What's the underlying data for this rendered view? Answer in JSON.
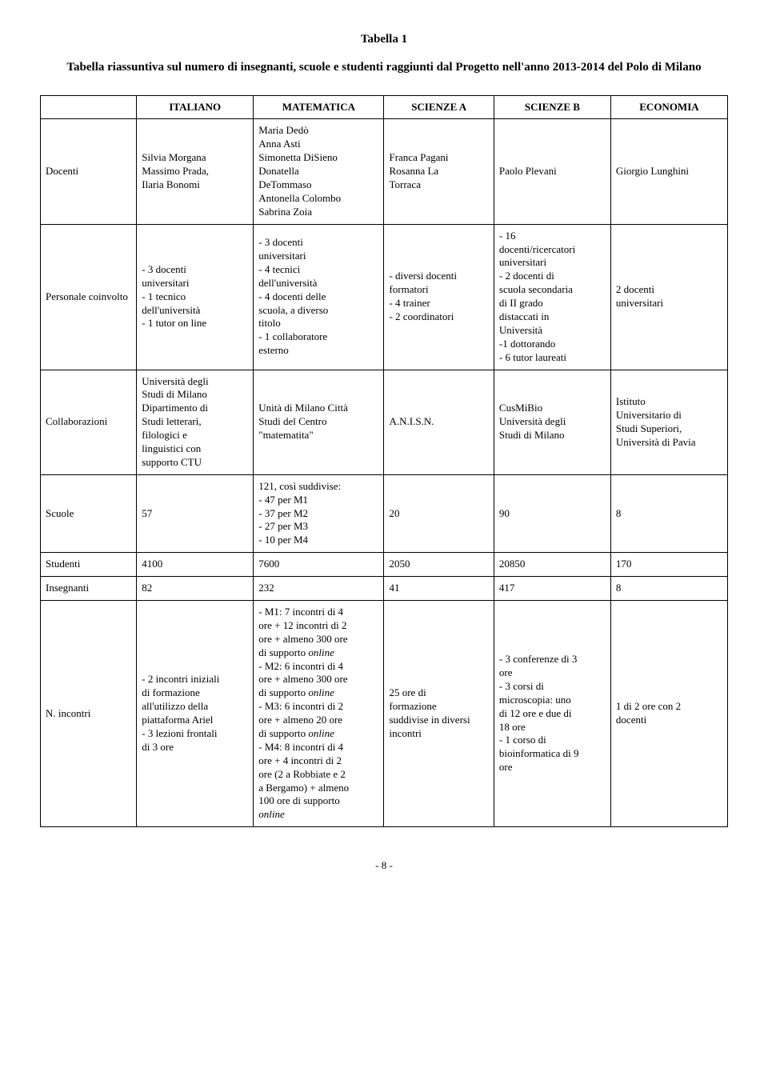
{
  "title1": "Tabella 1",
  "title2": "Tabella riassuntiva sul numero di insegnanti, scuole e studenti raggiunti dal Progetto nell'anno 2013-2014 del Polo di Milano",
  "columns": [
    "ITALIANO",
    "MATEMATICA",
    "SCIENZE A",
    "SCIENZE B",
    "ECONOMIA"
  ],
  "rows": [
    {
      "label": "Docenti",
      "cells": [
        "Silvia Morgana\nMassimo Prada,\nIlaria Bonomi",
        "Maria Dedò\nAnna Asti\nSimonetta DiSieno\nDonatella\nDeTommaso\nAntonella Colombo\nSabrina Zoia",
        "Franca Pagani\nRosanna La\nTorraca",
        "Paolo Plevani",
        "Giorgio Lunghini"
      ]
    },
    {
      "label": "Personale coinvolto",
      "cells": [
        "- 3 docenti\nuniversitari\n- 1 tecnico\ndell'università\n- 1 tutor on line",
        "- 3 docenti\nuniversitari\n- 4 tecnici\ndell'università\n- 4 docenti delle\nscuola, a diverso\ntitolo\n- 1 collaboratore\nesterno",
        "- diversi docenti\nformatori\n- 4 trainer\n- 2 coordinatori",
        "- 16\ndocenti/ricercatori\nuniversitari\n- 2 docenti di\nscuola secondaria\ndi II grado\ndistaccati in\nUniversità\n-1 dottorando\n- 6 tutor laureati",
        "2 docenti\nuniversitari"
      ]
    },
    {
      "label": "Collaborazioni",
      "cells": [
        "Università degli\nStudi di Milano\nDipartimento di\nStudi letterari,\nfilologici e\nlinguistici con\nsupporto CTU",
        "Unità di Milano Città\nStudi del Centro\n\"matematita\"",
        "A.N.I.S.N.",
        "CusMiBio\nUniversità degli\nStudi di Milano",
        "Istituto\nUniversitario di\nStudi Superiori,\nUniversità di Pavia"
      ]
    },
    {
      "label": "Scuole",
      "cells": [
        "57",
        "121, così suddivise:\n- 47 per M1\n- 37 per M2\n- 27 per M3\n- 10 per M4",
        "20",
        "90",
        "8"
      ]
    },
    {
      "label": "Studenti",
      "cells": [
        "4100",
        "7600",
        "2050",
        "20850",
        "170"
      ]
    },
    {
      "label": "Insegnanti",
      "cells": [
        "82",
        "232",
        "41",
        "417",
        "8"
      ]
    },
    {
      "label": "N. incontri",
      "cells": [
        "- 2 incontri iniziali\ndi formazione\nall'utilizzo della\npiattaforma Ariel\n- 3 lezioni frontali\ndi 3 ore",
        "- M1: 7 incontri di 4\nore + 12 incontri di 2\nore + almeno 300 ore\ndi supporto online\n- M2: 6 incontri di 4\nore + almeno 300 ore\ndi supporto online\n- M3: 6 incontri di 2\nore + almeno 20 ore\ndi supporto online\n- M4: 8 incontri di 4\nore + 4 incontri di 2\nore (2 a Robbiate e 2\na Bergamo) + almeno\n100 ore di supporto\nonline",
        "25 ore di\nformazione\nsuddivise in diversi\nincontri",
        "- 3 conferenze di 3\nore\n- 3 corsi di\nmicroscopia: uno\ndi 12 ore e due di\n18 ore\n- 1 corso di\nbioinformatica di 9\nore",
        "1 di 2 ore con 2\ndocenti"
      ]
    }
  ],
  "page_number": "- 8 -",
  "colors": {
    "text": "#000000",
    "background": "#ffffff",
    "border": "#000000"
  }
}
